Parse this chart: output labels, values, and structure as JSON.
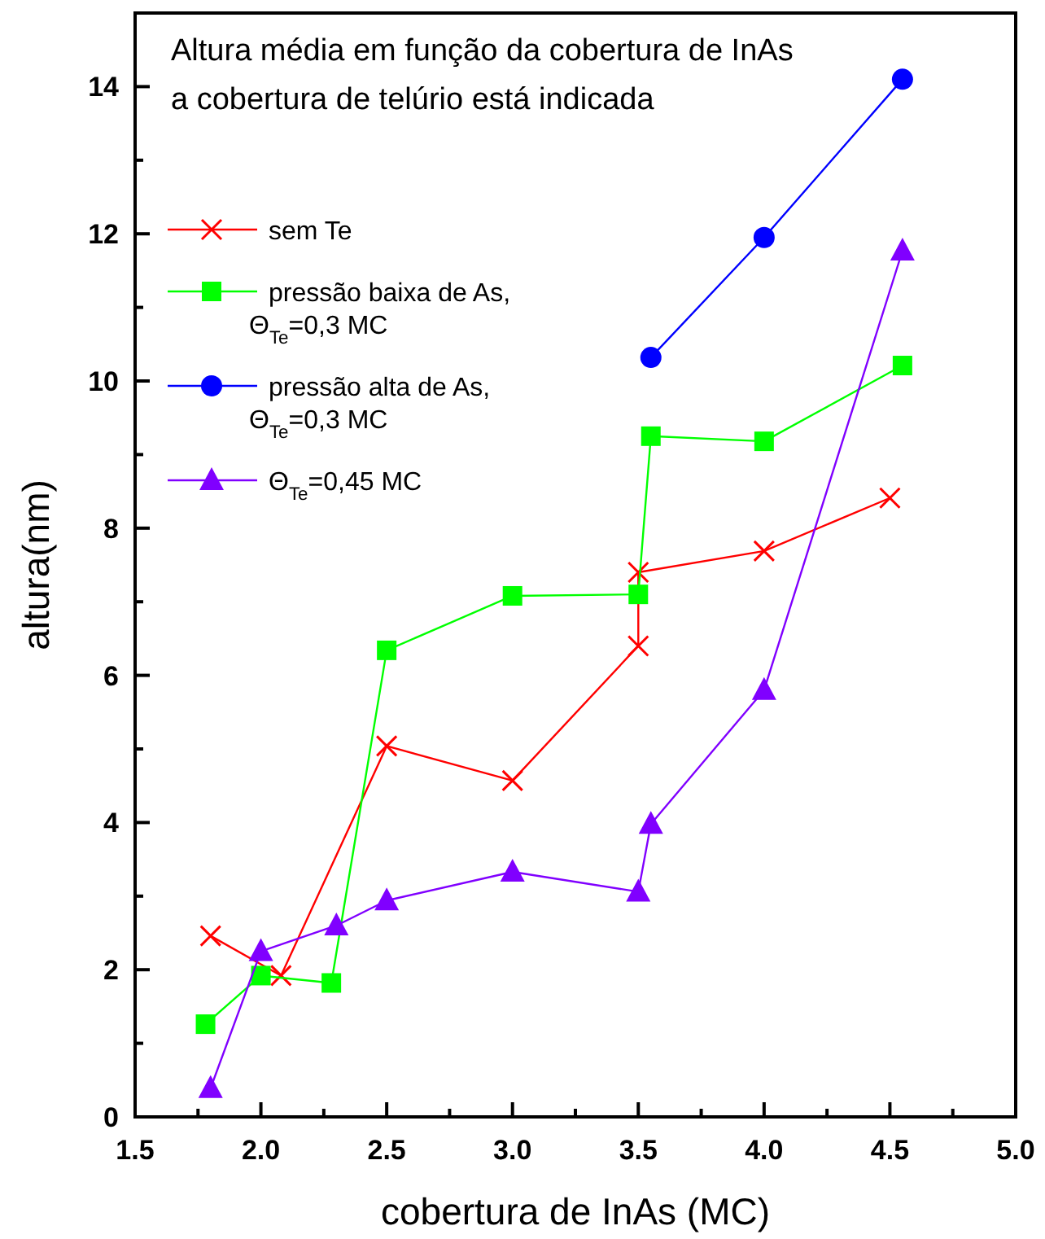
{
  "chart_data": {
    "type": "line",
    "xlabel": "cobertura de InAs (MC)",
    "ylabel": "altura(nm)",
    "annotations": [
      "Altura média em função da cobertura de InAs",
      "a cobertura de telúrio está indicada"
    ],
    "xlim": [
      1.5,
      5.0
    ],
    "ylim": [
      0,
      15
    ],
    "xticks": [
      1.5,
      {
        "value": 1.75,
        "label": null
      },
      "2.0",
      {
        "value": 2.25,
        "label": null
      },
      2.5,
      {
        "value": 2.75,
        "label": null
      },
      "3.0",
      {
        "value": 3.25,
        "label": null
      },
      3.5,
      {
        "value": 3.75,
        "label": null
      },
      "4.0",
      {
        "value": 4.25,
        "label": null
      },
      4.5,
      {
        "value": 4.75,
        "label": null
      },
      "5.0"
    ],
    "yticks": [
      0,
      {
        "value": 1,
        "label": null
      },
      2,
      {
        "value": 3,
        "label": null
      },
      4,
      {
        "value": 5,
        "label": null
      },
      6,
      {
        "value": 7,
        "label": null
      },
      8,
      {
        "value": 9,
        "label": null
      },
      10,
      {
        "value": 11,
        "label": null
      },
      12,
      {
        "value": 13,
        "label": null
      },
      14
    ],
    "grid": false,
    "legend": "left",
    "series": [
      {
        "name": "sem Te",
        "color": "#ff0000",
        "marker": "cross",
        "x": [
          1.8,
          2.08,
          2.5,
          3.0,
          3.5,
          3.5,
          4.0,
          4.5
        ],
        "values": [
          2.46,
          1.92,
          5.04,
          4.57,
          6.4,
          7.4,
          7.69,
          8.41
        ]
      },
      {
        "name": "pressão baixa de As,\nΘ$_{Te}$=0,3 MC",
        "color": "#00ff00",
        "marker": "square",
        "x": [
          1.78,
          2.0,
          2.28,
          2.5,
          3.0,
          3.5,
          3.55,
          4.0,
          4.55
        ],
        "values": [
          1.26,
          1.92,
          1.82,
          6.34,
          7.08,
          7.1,
          9.25,
          9.18,
          10.21
        ]
      },
      {
        "name": "pressão alta de As,\nΘ$_{Te}$=0,3 MC",
        "color": "#0000ff",
        "marker": "circle",
        "x": [
          3.55,
          4.0,
          4.55
        ],
        "values": [
          10.32,
          11.95,
          14.1
        ]
      },
      {
        "name": "Θ$_{Te}$=0,45 MC",
        "color": "#8000ff",
        "marker": "triangle",
        "x": [
          1.8,
          2.0,
          2.3,
          2.5,
          3.0,
          3.5,
          3.55,
          4.0,
          4.55
        ],
        "values": [
          0.39,
          2.25,
          2.6,
          2.94,
          3.33,
          3.06,
          3.98,
          5.8,
          11.77
        ]
      }
    ]
  }
}
